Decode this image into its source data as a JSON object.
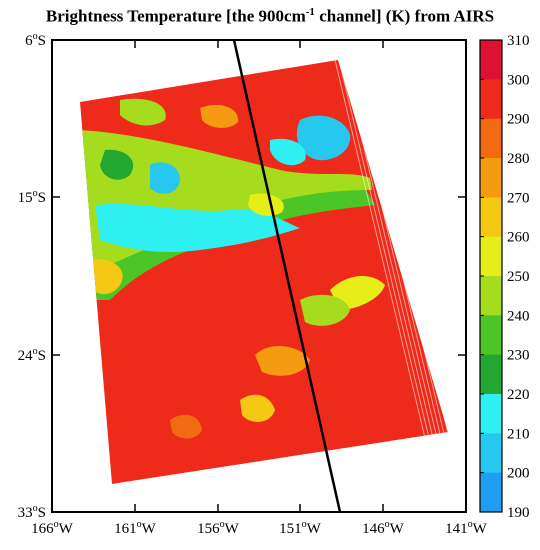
{
  "title": {
    "prefix": "Brightness Temperature [the 900cm",
    "superscript": "-1",
    "suffix": " channel] (K) from AIRS"
  },
  "map": {
    "lat_ticks": [
      {
        "deg": "6",
        "dir": "S"
      },
      {
        "deg": "15",
        "dir": "S"
      },
      {
        "deg": "24",
        "dir": "S"
      },
      {
        "deg": "33",
        "dir": "S"
      }
    ],
    "lon_ticks": [
      {
        "deg": "166",
        "dir": "W"
      },
      {
        "deg": "161",
        "dir": "W"
      },
      {
        "deg": "156",
        "dir": "W"
      },
      {
        "deg": "151",
        "dir": "W"
      },
      {
        "deg": "146",
        "dir": "W"
      },
      {
        "deg": "141",
        "dir": "W"
      }
    ],
    "degree_symbol": "o"
  },
  "colorbar": {
    "labels": [
      "310",
      "300",
      "290",
      "280",
      "270",
      "260",
      "250",
      "240",
      "230",
      "220",
      "210",
      "200",
      "190"
    ],
    "colors": [
      "#dd1133",
      "#ee2a1a",
      "#f26a12",
      "#f59b12",
      "#f5c814",
      "#e6ee1a",
      "#a6dc1e",
      "#4cc626",
      "#22a830",
      "#2ef0f0",
      "#26c8f0",
      "#1e9ef2",
      "#1e66f2"
    ]
  }
}
